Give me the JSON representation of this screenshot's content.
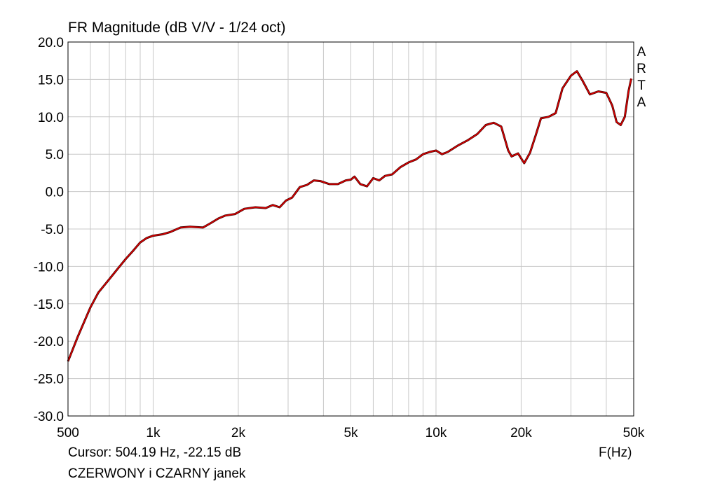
{
  "chart_data": {
    "type": "line",
    "title": "FR Magnitude (dB V/V - 1/24 oct)",
    "xlabel": "F(Hz)",
    "ylabel": "",
    "xscale": "log",
    "xlim": [
      500,
      50000
    ],
    "ylim": [
      -30,
      20
    ],
    "grid": true,
    "x_tick_labels": [
      "500",
      "1k",
      "2k",
      "5k",
      "10k",
      "20k",
      "50k"
    ],
    "x_tick_values": [
      500,
      1000,
      2000,
      5000,
      10000,
      20000,
      50000
    ],
    "y_tick_labels": [
      "20.0",
      "15.0",
      "10.0",
      "5.0",
      "0.0",
      "-5.0",
      "-10.0",
      "-15.0",
      "-20.0",
      "-25.0",
      "-30.0"
    ],
    "y_tick_values": [
      20,
      15,
      10,
      5,
      0,
      -5,
      -10,
      -15,
      -20,
      -25,
      -30
    ],
    "series": [
      {
        "color": "#dd0000",
        "x": [
          500,
          540,
          600,
          640,
          700,
          750,
          800,
          850,
          900,
          950,
          1000,
          1080,
          1150,
          1250,
          1350,
          1500,
          1600,
          1700,
          1800,
          1950,
          2100,
          2300,
          2500,
          2650,
          2800,
          2950,
          3100,
          3300,
          3500,
          3700,
          3900,
          4200,
          4500,
          4800,
          5000,
          5150,
          5400,
          5700,
          6000,
          6300,
          6600,
          7000,
          7500,
          8000,
          8500,
          9000,
          9500,
          10000,
          10500,
          11000,
          12000,
          13000,
          14000,
          15000,
          16000,
          17000,
          18000,
          18500,
          19500,
          20500,
          21500,
          22500,
          23500,
          25000,
          26500,
          28000,
          30000,
          31500,
          33000,
          35000,
          37500,
          40000,
          42000,
          43500,
          45000,
          46500,
          48000,
          49000
        ],
        "y": [
          -22.7,
          -19.5,
          -15.5,
          -13.5,
          -11.7,
          -10.3,
          -9.0,
          -7.9,
          -6.8,
          -6.2,
          -5.9,
          -5.7,
          -5.4,
          -4.8,
          -4.7,
          -4.8,
          -4.2,
          -3.6,
          -3.2,
          -3.0,
          -2.3,
          -2.1,
          -2.2,
          -1.8,
          -2.1,
          -1.2,
          -0.8,
          0.6,
          0.9,
          1.5,
          1.4,
          1.0,
          1.0,
          1.5,
          1.6,
          2.0,
          1.0,
          0.7,
          1.8,
          1.5,
          2.1,
          2.3,
          3.3,
          3.9,
          4.3,
          5.0,
          5.3,
          5.5,
          5.0,
          5.3,
          6.2,
          6.9,
          7.7,
          8.9,
          9.2,
          8.7,
          5.5,
          4.7,
          5.1,
          3.8,
          5.2,
          7.5,
          9.8,
          10.0,
          10.5,
          13.8,
          15.5,
          16.1,
          14.8,
          13.0,
          13.4,
          13.2,
          11.5,
          9.3,
          8.9,
          10.0,
          13.5,
          15.1
        ]
      }
    ]
  },
  "cursor_text": "Cursor: 504.19 Hz, -22.15 dB",
  "caption": "CZERWONY i CZARNY janek",
  "brand_letters": [
    "A",
    "R",
    "T",
    "A"
  ],
  "colors": {
    "trace": "#dd0000",
    "trace_shadow": "#3a0000",
    "grid": "#c8c8c8",
    "frame": "#000000"
  }
}
